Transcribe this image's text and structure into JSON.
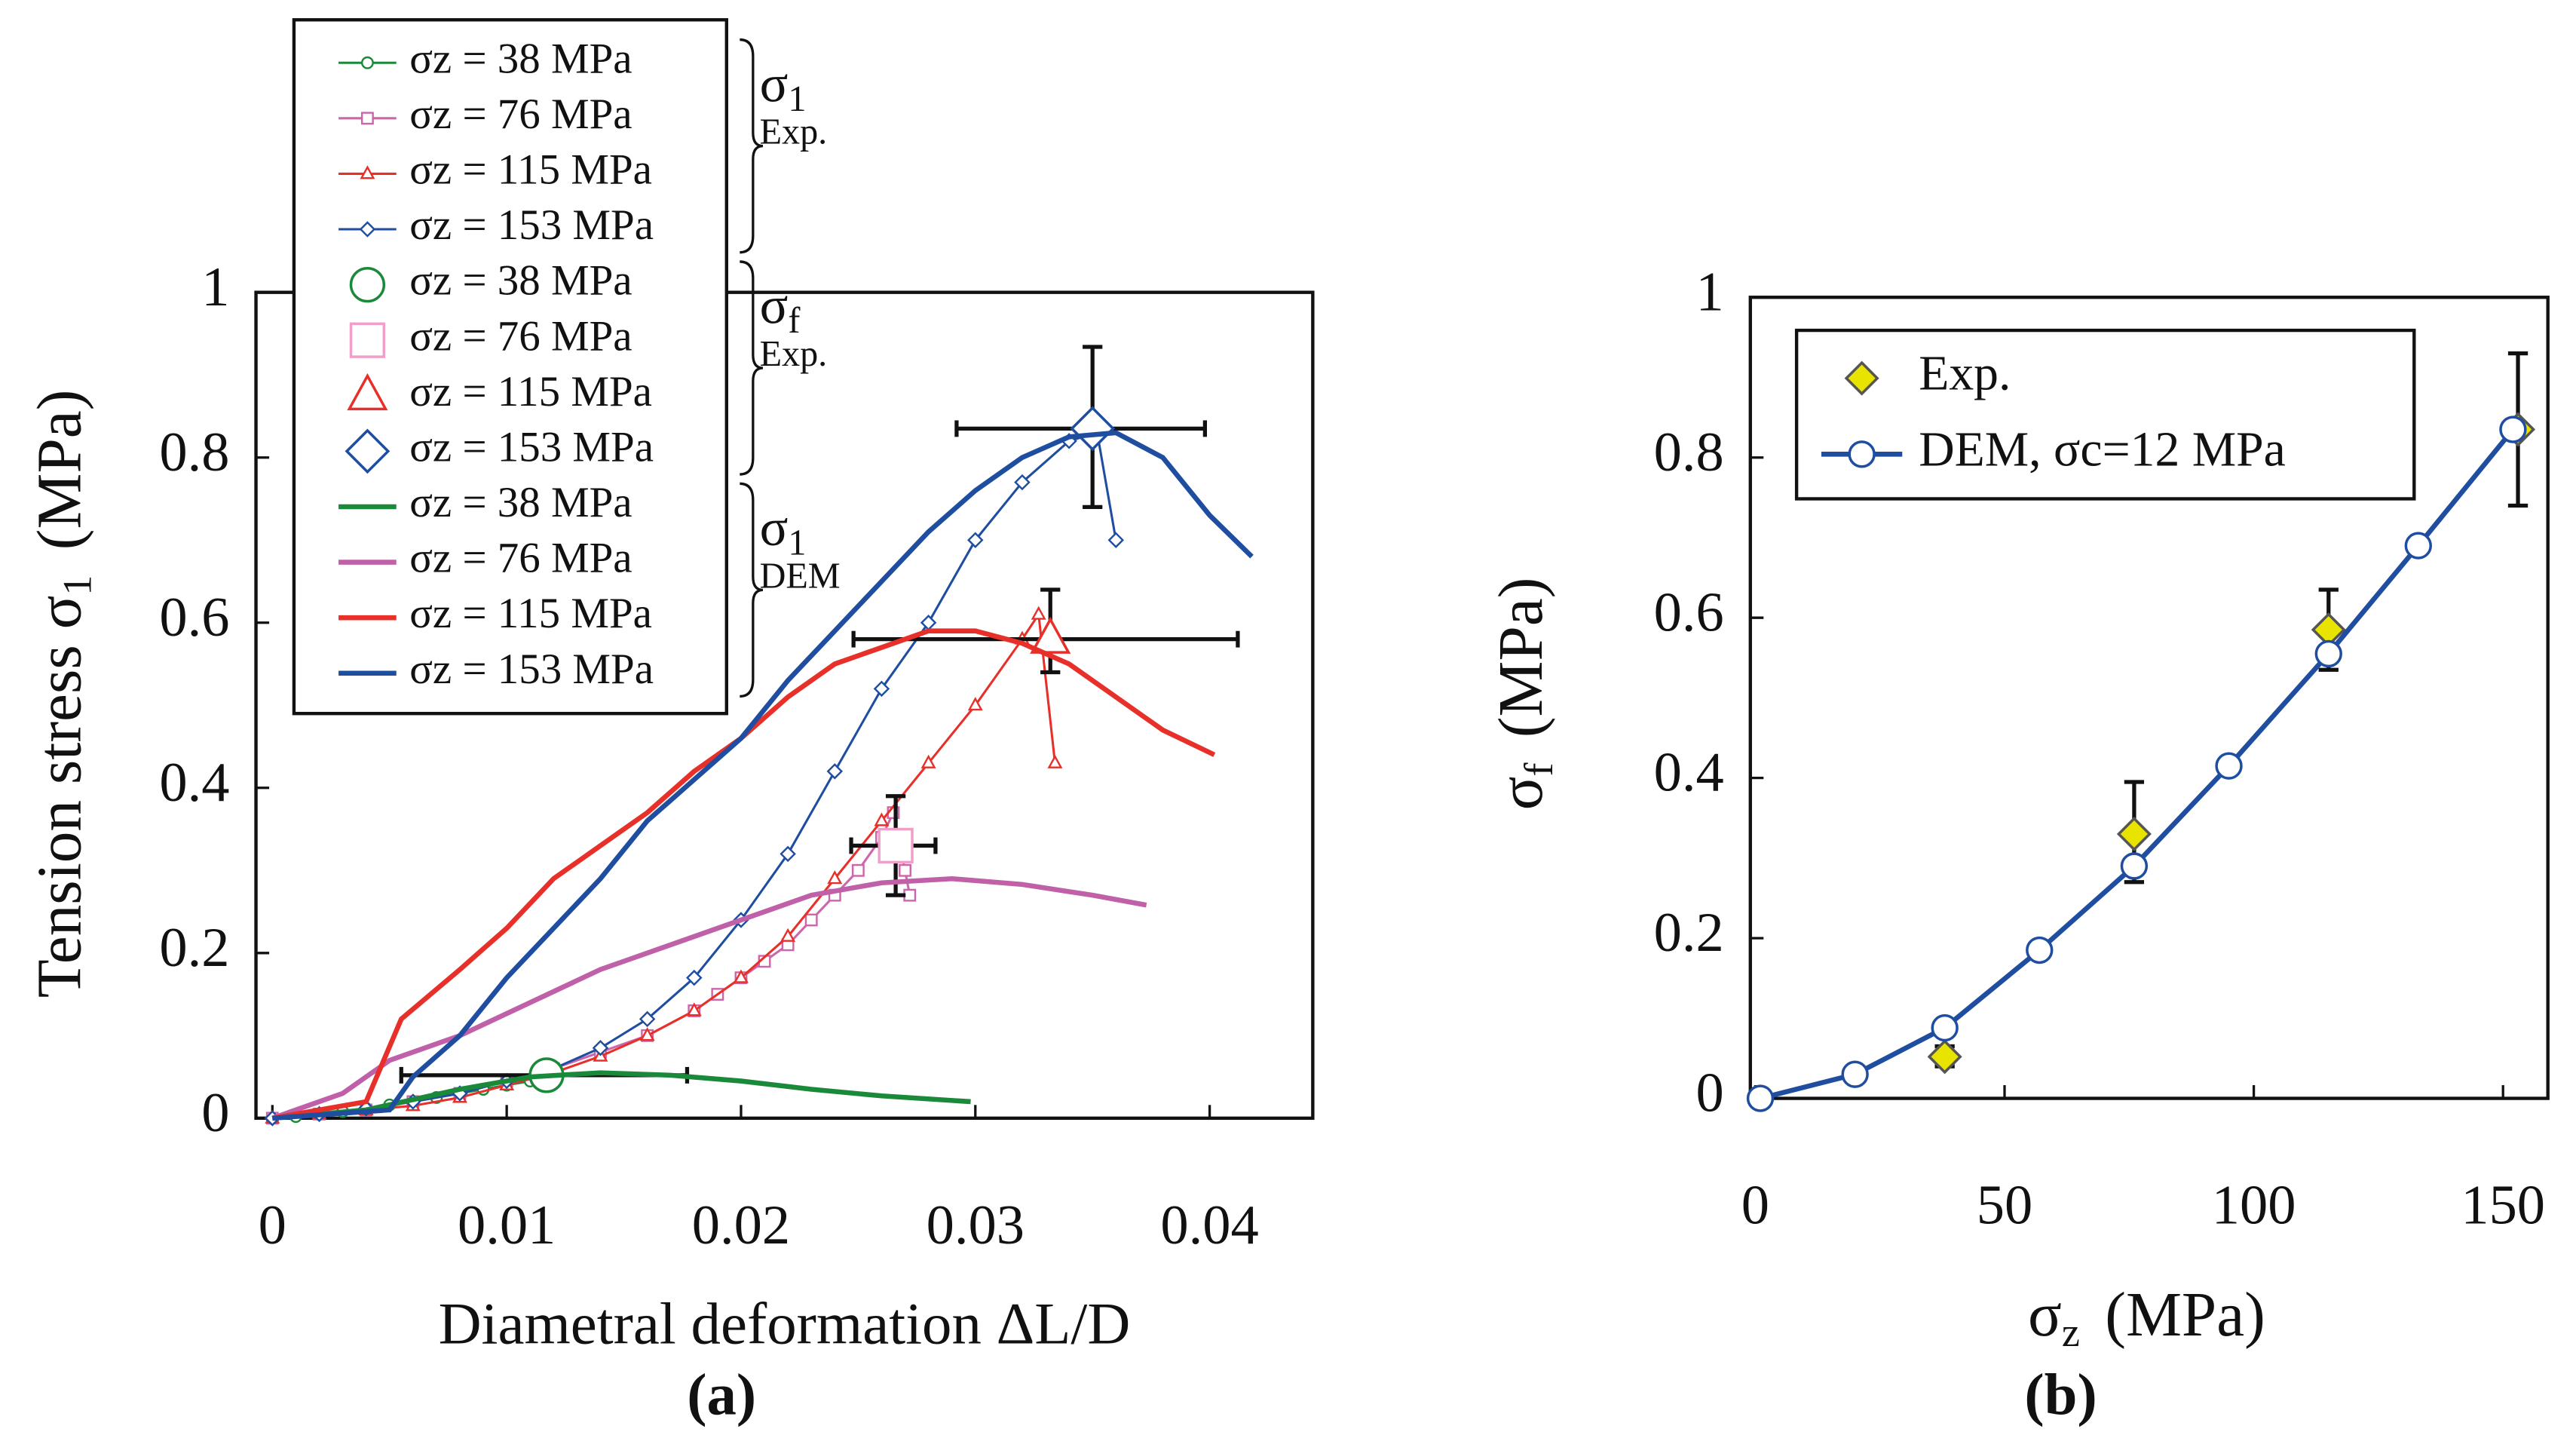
{
  "chart_data": [
    {
      "type": "line",
      "caption": "(a)",
      "xlabel": "Diametral deformation   ΔL/D",
      "ylabel": {
        "text": "Tension stress  σ",
        "subscript": "1",
        "unit": "(MPa)"
      },
      "xlim": [
        -0.0007,
        0.0444
      ],
      "ylim": [
        0,
        1
      ],
      "xticks": [
        0,
        0.01,
        0.02,
        0.03,
        0.04
      ],
      "yticks": [
        0,
        0.2,
        0.4,
        0.6,
        0.8,
        1
      ],
      "legend": "upper left",
      "legend_groups": [
        {
          "symbol": "σ",
          "subscript": "1",
          "label": "Exp."
        },
        {
          "symbol": "σ",
          "subscript": "f",
          "label": "Exp."
        },
        {
          "symbol": "σ",
          "subscript": "1",
          "label": "DEM"
        }
      ],
      "series": [
        {
          "name": "σz =   38 MPa",
          "color": "#1a8a3a",
          "fill": "#ffffff",
          "marker": "circle",
          "marker_size": "small",
          "line": true,
          "x": [
            0,
            0.001,
            0.002,
            0.003,
            0.004,
            0.005,
            0.006,
            0.007,
            0.008,
            0.009,
            0.01,
            0.011,
            0.012
          ],
          "values": [
            0,
            0.002,
            0.005,
            0.008,
            0.012,
            0.016,
            0.02,
            0.025,
            0.03,
            0.035,
            0.04,
            0.045,
            0.05
          ]
        },
        {
          "name": "σz =   76 MPa",
          "color": "#cc66aa",
          "fill": "#ffffff",
          "marker": "square",
          "marker_size": "small",
          "line": true,
          "x": [
            0,
            0.002,
            0.004,
            0.006,
            0.008,
            0.01,
            0.012,
            0.014,
            0.016,
            0.018,
            0.019,
            0.02,
            0.021,
            0.022,
            0.023,
            0.024,
            0.025,
            0.026,
            0.0265,
            0.027,
            0.0272
          ],
          "values": [
            0,
            0.005,
            0.01,
            0.02,
            0.03,
            0.045,
            0.06,
            0.08,
            0.1,
            0.13,
            0.15,
            0.17,
            0.19,
            0.21,
            0.24,
            0.27,
            0.3,
            0.34,
            0.37,
            0.3,
            0.27
          ]
        },
        {
          "name": "σz = 115 MPa",
          "color": "#e8302a",
          "fill": "#ffffff",
          "marker": "triangle",
          "marker_size": "small",
          "line": true,
          "x": [
            0,
            0.002,
            0.004,
            0.006,
            0.008,
            0.01,
            0.012,
            0.014,
            0.016,
            0.018,
            0.02,
            0.022,
            0.024,
            0.026,
            0.028,
            0.03,
            0.032,
            0.0327,
            0.0334
          ],
          "values": [
            0,
            0.005,
            0.01,
            0.015,
            0.025,
            0.04,
            0.055,
            0.075,
            0.1,
            0.13,
            0.17,
            0.22,
            0.29,
            0.36,
            0.43,
            0.5,
            0.58,
            0.61,
            0.43
          ]
        },
        {
          "name": "σz = 153 MPa",
          "color": "#1f4ea0",
          "fill": "#ffffff",
          "marker": "diamond",
          "marker_size": "small",
          "line": true,
          "x": [
            0,
            0.002,
            0.004,
            0.006,
            0.008,
            0.01,
            0.012,
            0.014,
            0.016,
            0.018,
            0.02,
            0.022,
            0.024,
            0.026,
            0.028,
            0.03,
            0.032,
            0.034,
            0.0352,
            0.036
          ],
          "values": [
            0,
            0.005,
            0.012,
            0.02,
            0.03,
            0.045,
            0.06,
            0.085,
            0.12,
            0.17,
            0.24,
            0.32,
            0.42,
            0.52,
            0.6,
            0.7,
            0.77,
            0.82,
            0.83,
            0.7
          ]
        },
        {
          "name": "σz =   38 MPa",
          "color": "#1a8a3a",
          "fill": "#ffffff",
          "marker": "circle",
          "marker_size": "large",
          "line": false,
          "x": [
            0.0117
          ],
          "values": [
            0.052
          ],
          "x_range": [
            [
              0.0055,
              0.0177
            ]
          ]
        },
        {
          "name": "σz =   76 MPa",
          "color": "#f0a0c8",
          "fill": "#ffffff",
          "marker": "square",
          "marker_size": "large",
          "line": false,
          "x": [
            0.0266
          ],
          "values": [
            0.33
          ],
          "x_range": [
            [
              0.0247,
              0.0283
            ]
          ],
          "y_range": [
            [
              0.27,
              0.39
            ]
          ]
        },
        {
          "name": "σz = 115 MPa",
          "color": "#e8302a",
          "fill": "#ffffff",
          "marker": "triangle",
          "marker_size": "large",
          "line": false,
          "x": [
            0.0332
          ],
          "values": [
            0.58
          ],
          "x_range": [
            [
              0.0248,
              0.0412
            ]
          ],
          "y_range": [
            [
              0.54,
              0.64
            ]
          ]
        },
        {
          "name": "σz = 153 MPa",
          "color": "#1f4ea0",
          "fill": "#ffffff",
          "marker": "diamond",
          "marker_size": "large",
          "line": false,
          "x": [
            0.035
          ],
          "values": [
            0.835
          ],
          "x_range": [
            [
              0.0292,
              0.0398
            ]
          ],
          "y_range": [
            [
              0.74,
              0.934
            ]
          ]
        },
        {
          "name": "σz =   38 MPa",
          "color": "#1a8a3a",
          "line": true,
          "x": [
            0,
            0.004,
            0.008,
            0.011,
            0.014,
            0.017,
            0.02,
            0.023,
            0.026,
            0.0298
          ],
          "values": [
            0,
            0.01,
            0.035,
            0.05,
            0.055,
            0.052,
            0.045,
            0.035,
            0.027,
            0.02
          ]
        },
        {
          "name": "σz =   76 MPa",
          "color": "#c060a8",
          "line": true,
          "x": [
            0,
            0.003,
            0.005,
            0.008,
            0.011,
            0.014,
            0.017,
            0.02,
            0.023,
            0.026,
            0.029,
            0.032,
            0.035,
            0.0373
          ],
          "values": [
            0,
            0.03,
            0.07,
            0.1,
            0.14,
            0.18,
            0.21,
            0.24,
            0.27,
            0.285,
            0.29,
            0.283,
            0.27,
            0.258
          ]
        },
        {
          "name": "σz = 115 MPa",
          "color": "#e8302a",
          "line": true,
          "x": [
            0,
            0.004,
            0.0055,
            0.008,
            0.01,
            0.012,
            0.014,
            0.016,
            0.018,
            0.02,
            0.022,
            0.024,
            0.026,
            0.028,
            0.03,
            0.032,
            0.034,
            0.036,
            0.038,
            0.0402
          ],
          "values": [
            0,
            0.02,
            0.12,
            0.18,
            0.23,
            0.29,
            0.33,
            0.37,
            0.42,
            0.46,
            0.51,
            0.55,
            0.57,
            0.59,
            0.59,
            0.575,
            0.55,
            0.51,
            0.47,
            0.44
          ]
        },
        {
          "name": "σz = 153 MPa",
          "color": "#1f4ea0",
          "line": true,
          "x": [
            0,
            0.005,
            0.006,
            0.008,
            0.01,
            0.012,
            0.014,
            0.016,
            0.018,
            0.02,
            0.022,
            0.024,
            0.026,
            0.028,
            0.03,
            0.032,
            0.034,
            0.036,
            0.038,
            0.04,
            0.0418
          ],
          "values": [
            0,
            0.01,
            0.05,
            0.1,
            0.17,
            0.23,
            0.29,
            0.36,
            0.41,
            0.46,
            0.53,
            0.59,
            0.65,
            0.71,
            0.76,
            0.8,
            0.825,
            0.83,
            0.8,
            0.73,
            0.68
          ]
        }
      ]
    },
    {
      "type": "line",
      "caption": "(b)",
      "xlabel": {
        "text": "σ",
        "subscript": "z",
        "unit": "(MPa)"
      },
      "ylabel": {
        "text": "σ",
        "subscript": "f",
        "unit": "(MPa)"
      },
      "xlim": [
        -1,
        159
      ],
      "ylim": [
        0,
        1
      ],
      "xticks": [
        0,
        50,
        100,
        150
      ],
      "yticks": [
        0,
        0.2,
        0.4,
        0.6,
        0.8,
        1
      ],
      "legend": "upper left",
      "series": [
        {
          "name": "Exp.",
          "color": "#555555",
          "fill": "#e8e400",
          "marker": "diamond",
          "marker_size": "medium",
          "line": false,
          "x": [
            38,
            76,
            115,
            153
          ],
          "values": [
            0.052,
            0.33,
            0.585,
            0.835
          ],
          "y_range": [
            [
              0.04,
              0.065
            ],
            [
              0.27,
              0.395
            ],
            [
              0.535,
              0.635
            ],
            [
              0.74,
              0.93
            ]
          ]
        },
        {
          "name": "DEM,  σc=12 MPa",
          "color": "#1f4ea0",
          "fill": "#ffffff",
          "marker": "circle",
          "marker_size": "medium",
          "line": true,
          "x": [
            1,
            20,
            38,
            57,
            76,
            95,
            115,
            133,
            152
          ],
          "values": [
            0,
            0.03,
            0.088,
            0.185,
            0.29,
            0.415,
            0.555,
            0.69,
            0.835
          ]
        }
      ]
    }
  ]
}
